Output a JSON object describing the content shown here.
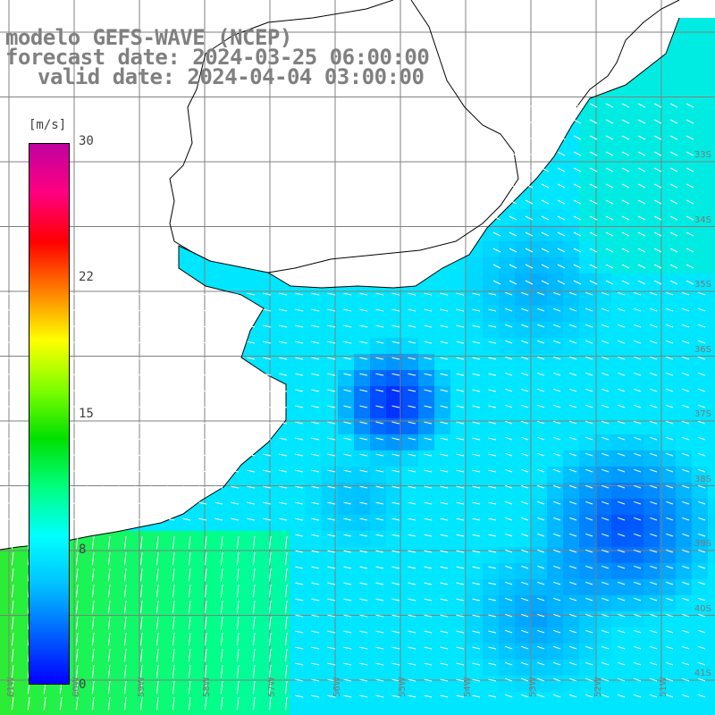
{
  "map": {
    "title_line1": "modelo GEFS-WAVE (NCEP)",
    "title_line2": "forecast date: 2024-03-25 06:00:00",
    "title_line3": "valid date: 2024-04-04 03:00:00"
  },
  "colorbar": {
    "unit": "[m/s]",
    "ticks": [
      "30",
      "22",
      "15",
      "8",
      "0"
    ],
    "colors": [
      "#0000ff",
      "#0060ff",
      "#00c0ff",
      "#00ffff",
      "#00ff80",
      "#00e000",
      "#80ff00",
      "#ffff00",
      "#ff8000",
      "#ff0000",
      "#ff0080",
      "#c000a0"
    ]
  },
  "grid": {
    "lat_labels": [
      "33S",
      "34S",
      "35S",
      "36S",
      "37S",
      "38S",
      "39S",
      "40S",
      "41S"
    ],
    "lon_labels": [
      "61W",
      "60W",
      "59W",
      "58W",
      "57W",
      "56W",
      "55W",
      "54W",
      "53W",
      "52W",
      "51W"
    ]
  },
  "colors": {
    "land": "#ffffff",
    "coast": "#000000",
    "gridline": "#808080",
    "arrow": "#ffffff"
  }
}
